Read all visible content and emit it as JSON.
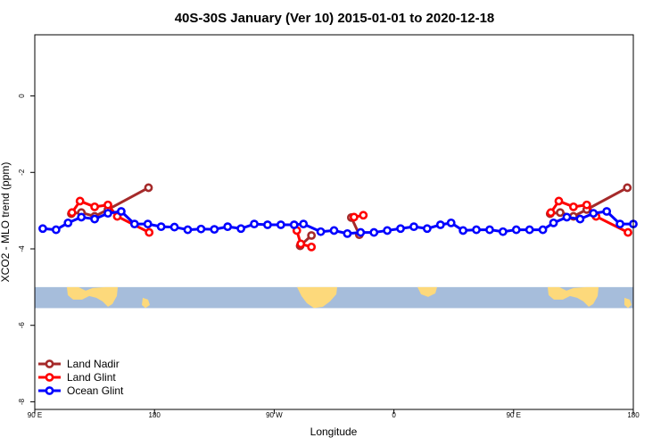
{
  "chart_data": {
    "type": "line",
    "title": "40S-30S January (Ver 10)   2015-01-01 to 2020-12-18",
    "xlabel": "Longitude",
    "ylabel": "XCO2 - MLO trend (ppm)",
    "xlim": [
      90,
      540
    ],
    "ylim": [
      -8.2,
      1.6
    ],
    "xticks": [
      {
        "value": 90,
        "label": "90 E"
      },
      {
        "value": 180,
        "label": "180"
      },
      {
        "value": 270,
        "label": "90 W"
      },
      {
        "value": 360,
        "label": "0"
      },
      {
        "value": 450,
        "label": "90 E"
      },
      {
        "value": 540,
        "label": "180"
      }
    ],
    "yticks": [
      {
        "value": 0,
        "label": "0"
      },
      {
        "value": -2,
        "label": "-2"
      },
      {
        "value": -4,
        "label": "-4"
      },
      {
        "value": -6,
        "label": "-6"
      },
      {
        "value": -8,
        "label": "-8"
      }
    ],
    "map_band": {
      "lat_range": [
        -40,
        -30
      ],
      "ocean_color": "#a6bddb",
      "land_color": "#fdd97b",
      "y_range": [
        -5.55,
        -5.0
      ]
    },
    "series": [
      {
        "name": "Land Nadir",
        "color": "#a52a2a",
        "segments": [
          [
            [
              117.5,
              -3.08
            ],
            [
              125,
              -3.05
            ],
            [
              135,
              -3.15
            ],
            [
              145,
              -2.97
            ],
            [
              175.5,
              -2.4
            ]
          ],
          [
            [
              289.5,
              -3.92
            ],
            [
              298,
              -3.65
            ]
          ],
          [
            [
              328,
              -3.18
            ],
            [
              334,
              -3.63
            ]
          ],
          [
            [
              477.5,
              -3.08
            ],
            [
              485,
              -3.05
            ],
            [
              495,
              -3.15
            ],
            [
              505,
              -2.97
            ],
            [
              535.5,
              -2.4
            ]
          ]
        ]
      },
      {
        "name": "Land Glint",
        "color": "#ff0000",
        "segments": [
          [
            [
              118,
              -3.05
            ],
            [
              124,
              -2.75
            ],
            [
              135,
              -2.9
            ],
            [
              145,
              -2.85
            ],
            [
              152,
              -3.15
            ],
            [
              176,
              -3.57
            ]
          ],
          [
            [
              287,
              -3.52
            ],
            [
              290,
              -3.87
            ],
            [
              298,
              -3.95
            ]
          ],
          [
            [
              330,
              -3.17
            ],
            [
              337,
              -3.12
            ]
          ],
          [
            [
              478,
              -3.05
            ],
            [
              484,
              -2.75
            ],
            [
              495,
              -2.9
            ],
            [
              505,
              -2.85
            ],
            [
              512,
              -3.15
            ],
            [
              536,
              -3.57
            ]
          ]
        ]
      },
      {
        "name": "Ocean Glint",
        "color": "#0000ff",
        "segments": [
          [
            [
              96,
              -3.47
            ],
            [
              106,
              -3.5
            ],
            [
              115,
              -3.32
            ],
            [
              125,
              -3.17
            ],
            [
              135,
              -3.22
            ],
            [
              145,
              -3.07
            ],
            [
              155,
              -3.02
            ],
            [
              165,
              -3.35
            ],
            [
              175,
              -3.35
            ],
            [
              185,
              -3.42
            ],
            [
              195,
              -3.43
            ],
            [
              205,
              -3.5
            ],
            [
              215,
              -3.48
            ],
            [
              225,
              -3.49
            ],
            [
              235,
              -3.42
            ],
            [
              245,
              -3.47
            ],
            [
              255,
              -3.35
            ],
            [
              265,
              -3.37
            ],
            [
              275,
              -3.37
            ],
            [
              285,
              -3.37
            ],
            [
              292,
              -3.35
            ],
            [
              305,
              -3.55
            ],
            [
              315,
              -3.52
            ],
            [
              325,
              -3.6
            ],
            [
              335,
              -3.57
            ],
            [
              345,
              -3.57
            ],
            [
              355,
              -3.52
            ],
            [
              365,
              -3.47
            ],
            [
              375,
              -3.42
            ],
            [
              385,
              -3.47
            ],
            [
              395,
              -3.37
            ],
            [
              403,
              -3.32
            ],
            [
              412,
              -3.52
            ],
            [
              422,
              -3.5
            ],
            [
              432,
              -3.5
            ],
            [
              442,
              -3.55
            ],
            [
              452,
              -3.5
            ],
            [
              462,
              -3.5
            ],
            [
              472,
              -3.5
            ],
            [
              480,
              -3.32
            ],
            [
              490,
              -3.17
            ],
            [
              500,
              -3.22
            ],
            [
              510,
              -3.07
            ],
            [
              520,
              -3.02
            ],
            [
              530,
              -3.35
            ],
            [
              540,
              -3.35
            ]
          ]
        ]
      }
    ],
    "legend": {
      "position": "bottom-left"
    }
  }
}
